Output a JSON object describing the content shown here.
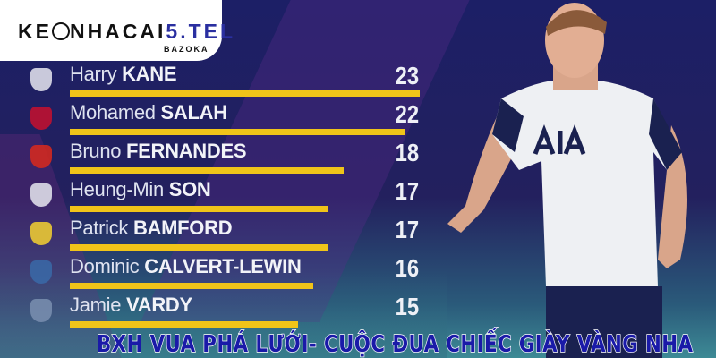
{
  "logo": {
    "brand_main": "KE",
    "brand_mid": "NHACAI",
    "brand_accent": "5.TEL",
    "sub": "BAZOKA"
  },
  "title": "BXH VUA PHÁ LƯỚI- CUỘC ĐUA CHIẾC GIÀY VÀNG NHA",
  "colors": {
    "bar": "#f0c419",
    "background": "#1c1f66",
    "title": "#1a1aa8"
  },
  "scorers": [
    {
      "first": "Harry",
      "last": "KANE",
      "goals": 23,
      "crest": "tottenham-crest-icon",
      "crest_color": "#e8e8f0"
    },
    {
      "first": "Mohamed",
      "last": "SALAH",
      "goals": 22,
      "crest": "liverpool-crest-icon",
      "crest_color": "#c8102e"
    },
    {
      "first": "Bruno",
      "last": "FERNANDES",
      "goals": 18,
      "crest": "man-united-crest-icon",
      "crest_color": "#da291c"
    },
    {
      "first": "Heung-Min",
      "last": "SON",
      "goals": 17,
      "crest": "tottenham-crest-icon",
      "crest_color": "#e8e8f0"
    },
    {
      "first": "Patrick",
      "last": "BAMFORD",
      "goals": 17,
      "crest": "leeds-crest-icon",
      "crest_color": "#f5d130"
    },
    {
      "first": "Dominic",
      "last": "CALVERT-LEWIN",
      "goals": 16,
      "crest": "everton-crest-icon",
      "crest_color": "#3a6aa8"
    },
    {
      "first": "Jamie",
      "last": "VARDY",
      "goals": 15,
      "crest": "leicester-crest-icon",
      "crest_color": "#7a8fb0"
    }
  ],
  "max_goals": 23
}
